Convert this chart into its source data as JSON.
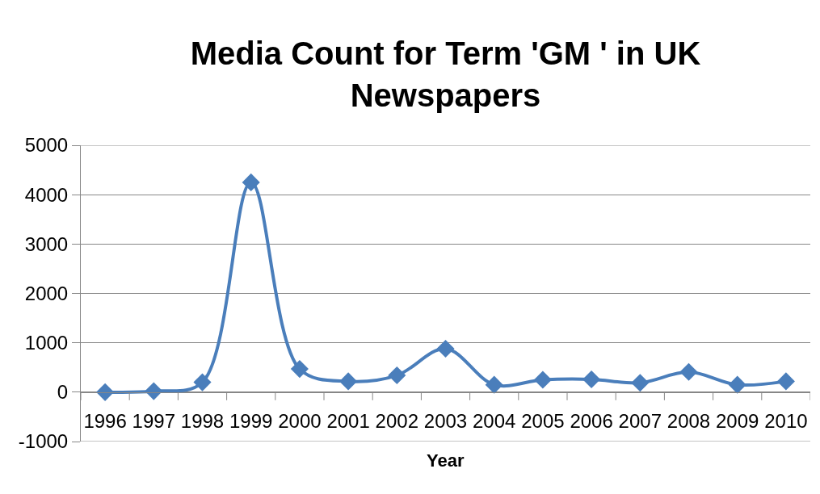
{
  "chart_data": {
    "type": "line",
    "title": "Media Count for Term 'GM ' in UK Newspapers",
    "xlabel": "Year",
    "categories": [
      "1996",
      "1997",
      "1998",
      "1999",
      "2000",
      "2001",
      "2002",
      "2003",
      "2004",
      "2005",
      "2006",
      "2007",
      "2008",
      "2009",
      "2010"
    ],
    "series": [
      {
        "color": "#4a7ebb",
        "values": [
          0,
          20,
          200,
          4250,
          470,
          220,
          340,
          880,
          150,
          250,
          260,
          190,
          410,
          150,
          220
        ]
      }
    ],
    "ylim": [
      -1000,
      5000
    ],
    "yticks": [
      -1000,
      0,
      1000,
      2000,
      3000,
      4000,
      5000
    ],
    "grid": "y",
    "marker": "diamond",
    "line_style": "solid"
  }
}
